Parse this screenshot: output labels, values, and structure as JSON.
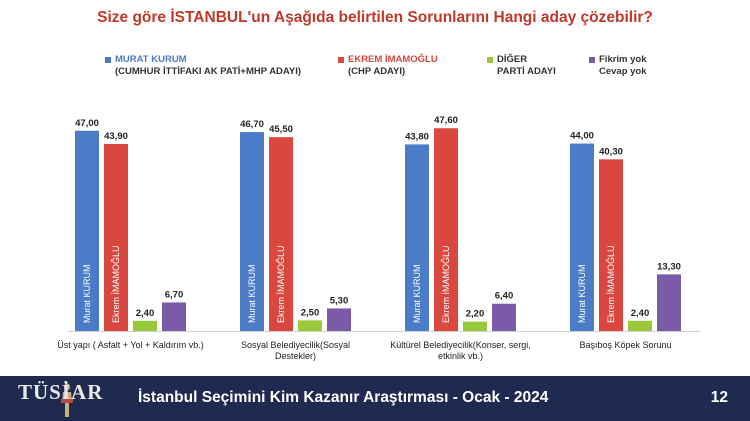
{
  "title": "Size göre İSTANBUL'un Aşağıda belirtilen Sorunlarını Hangi aday çözebilir?",
  "legend": [
    {
      "line1": "MURAT KURUM",
      "line2": "(CUMHUR İTTİFAKI AK PATİ+MHP ADAYI)",
      "color": "#4a7cc7"
    },
    {
      "line1": "EKREM İMAMOĞLU",
      "line2": "(CHP ADAYI)",
      "color": "#d9473f"
    },
    {
      "line1": "DİĞER",
      "line2": "PARTİ ADAYI",
      "color": "#9bc93c"
    },
    {
      "line1": "Fikrim yok",
      "line2": "Cevap yok",
      "color": "#7b5ba8"
    }
  ],
  "chart_data": {
    "type": "bar",
    "categories": [
      "Üst yapı ( Asfalt + Yol + Kaldırım vb.)",
      "Sosyal Belediyecilik(Sosyal Destekler)",
      "Kültürel Belediyecilik(Konser, sergi, etkinlik vb.)",
      "Başıboş Köpek Sorunu"
    ],
    "category_lines": [
      [
        "Üst yapı ( Asfalt + Yol + Kaldırım vb.)"
      ],
      [
        "Sosyal Belediyecilik(Sosyal",
        "Destekler)"
      ],
      [
        "Kültürel Belediyecilik(Konser, sergi,",
        "etkinlik vb.)"
      ],
      [
        "Başıboş Köpek Sorunu"
      ]
    ],
    "series": [
      {
        "name": "MURAT KURUM",
        "values": [
          47.0,
          46.7,
          43.8,
          44.0
        ],
        "labels": [
          "47,00",
          "46,70",
          "43,80",
          "44,00"
        ],
        "bar_text": "Murat KURUM",
        "color": "#4a7cc7"
      },
      {
        "name": "EKREM İMAMOĞLU",
        "values": [
          43.9,
          45.5,
          47.6,
          40.3
        ],
        "labels": [
          "43,90",
          "45,50",
          "47,60",
          "40,30"
        ],
        "bar_text": "Ekrem İMAMOĞLU",
        "color": "#d9473f"
      },
      {
        "name": "DİĞER PARTİ ADAYI",
        "values": [
          2.4,
          2.5,
          2.2,
          2.4
        ],
        "labels": [
          "2,40",
          "2,50",
          "2,20",
          "2,40"
        ],
        "bar_text": "",
        "color": "#9bc93c"
      },
      {
        "name": "Fikrim yok Cevap yok",
        "values": [
          6.7,
          5.3,
          6.4,
          13.3
        ],
        "labels": [
          "6,70",
          "5,30",
          "6,40",
          "13,30"
        ],
        "bar_text": "",
        "color": "#7b5ba8"
      }
    ],
    "ylim": [
      0,
      50
    ],
    "grid": false,
    "legend_position": "top"
  },
  "footer": {
    "logo_text": "TÜSİAR",
    "title": "İstanbul Seçimini Kim Kazanır Araştırması - Ocak - 2024",
    "page": "12"
  }
}
